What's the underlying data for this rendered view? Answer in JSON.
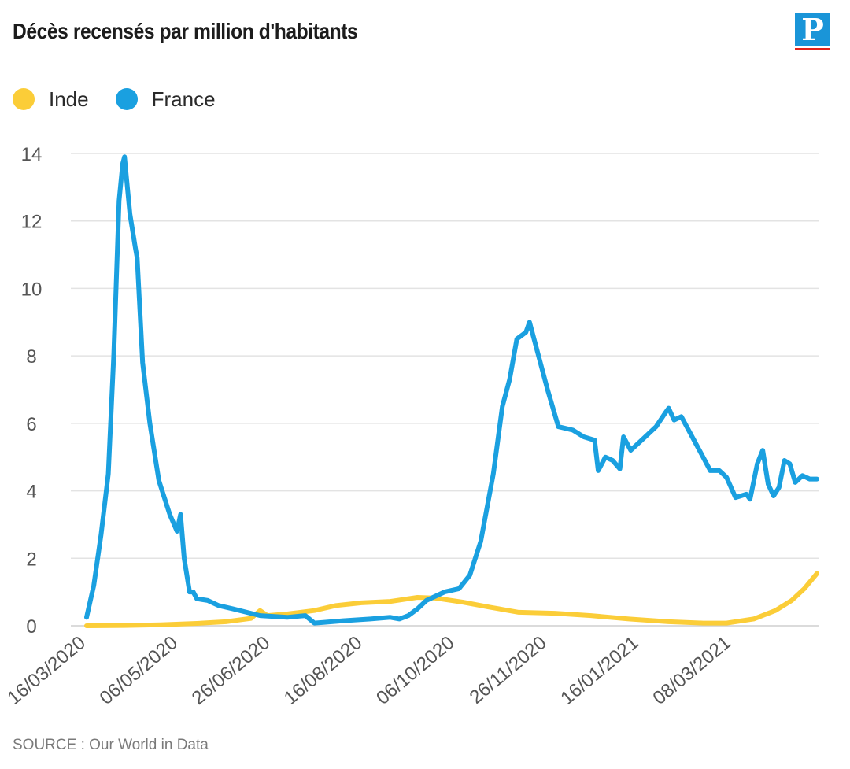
{
  "title": "Décès recensés par million d'habitants",
  "logo": {
    "letter": "P",
    "color": "#1a95d8",
    "accent": "#e2231a"
  },
  "source": "SOURCE : Our World in Data",
  "chart_data": {
    "type": "line",
    "title": "Décès recensés par million d'habitants",
    "xlabel": "",
    "ylabel": "",
    "ylim": [
      0,
      14
    ],
    "yticks": [
      0,
      2,
      4,
      6,
      8,
      10,
      12,
      14
    ],
    "xlim": [
      "2020-03-16",
      "2021-04-24"
    ],
    "xticks": [
      "16/03/2020",
      "06/05/2020",
      "26/06/2020",
      "16/08/2020",
      "06/10/2020",
      "26/11/2020",
      "16/01/2021",
      "08/03/2021"
    ],
    "grid": true,
    "legend_position": "top-left",
    "series": [
      {
        "name": "Inde",
        "color": "#fbcd38",
        "points": [
          [
            "2020-03-16",
            0.0
          ],
          [
            "2020-04-06",
            0.01
          ],
          [
            "2020-04-26",
            0.03
          ],
          [
            "2020-05-16",
            0.07
          ],
          [
            "2020-06-01",
            0.12
          ],
          [
            "2020-06-15",
            0.22
          ],
          [
            "2020-06-20",
            0.45
          ],
          [
            "2020-06-24",
            0.3
          ],
          [
            "2020-07-05",
            0.35
          ],
          [
            "2020-07-20",
            0.45
          ],
          [
            "2020-08-01",
            0.6
          ],
          [
            "2020-08-15",
            0.68
          ],
          [
            "2020-08-31",
            0.72
          ],
          [
            "2020-09-15",
            0.84
          ],
          [
            "2020-09-25",
            0.82
          ],
          [
            "2020-10-10",
            0.7
          ],
          [
            "2020-10-25",
            0.55
          ],
          [
            "2020-11-10",
            0.4
          ],
          [
            "2020-11-30",
            0.37
          ],
          [
            "2020-12-20",
            0.3
          ],
          [
            "2021-01-10",
            0.2
          ],
          [
            "2021-02-01",
            0.12
          ],
          [
            "2021-02-20",
            0.08
          ],
          [
            "2021-03-05",
            0.08
          ],
          [
            "2021-03-20",
            0.2
          ],
          [
            "2021-04-01",
            0.45
          ],
          [
            "2021-04-10",
            0.75
          ],
          [
            "2021-04-17",
            1.1
          ],
          [
            "2021-04-24",
            1.55
          ]
        ]
      },
      {
        "name": "France",
        "color": "#1aa0e0",
        "points": [
          [
            "2020-03-16",
            0.25
          ],
          [
            "2020-03-20",
            1.2
          ],
          [
            "2020-03-24",
            2.7
          ],
          [
            "2020-03-28",
            4.5
          ],
          [
            "2020-03-31",
            8.0
          ],
          [
            "2020-04-03",
            12.6
          ],
          [
            "2020-04-05",
            13.7
          ],
          [
            "2020-04-06",
            13.9
          ],
          [
            "2020-04-09",
            12.2
          ],
          [
            "2020-04-12",
            11.2
          ],
          [
            "2020-04-13",
            10.9
          ],
          [
            "2020-04-16",
            7.8
          ],
          [
            "2020-04-20",
            6.0
          ],
          [
            "2020-04-25",
            4.3
          ],
          [
            "2020-05-01",
            3.3
          ],
          [
            "2020-05-05",
            2.8
          ],
          [
            "2020-05-07",
            3.3
          ],
          [
            "2020-05-09",
            2.0
          ],
          [
            "2020-05-12",
            1.0
          ],
          [
            "2020-05-14",
            1.0
          ],
          [
            "2020-05-16",
            0.8
          ],
          [
            "2020-05-22",
            0.75
          ],
          [
            "2020-05-28",
            0.6
          ],
          [
            "2020-06-05",
            0.5
          ],
          [
            "2020-06-20",
            0.3
          ],
          [
            "2020-07-05",
            0.25
          ],
          [
            "2020-07-15",
            0.3
          ],
          [
            "2020-07-20",
            0.08
          ],
          [
            "2020-07-25",
            0.1
          ],
          [
            "2020-08-05",
            0.15
          ],
          [
            "2020-08-20",
            0.2
          ],
          [
            "2020-08-31",
            0.25
          ],
          [
            "2020-09-05",
            0.2
          ],
          [
            "2020-09-10",
            0.3
          ],
          [
            "2020-09-15",
            0.5
          ],
          [
            "2020-09-20",
            0.75
          ],
          [
            "2020-09-30",
            1.0
          ],
          [
            "2020-10-08",
            1.1
          ],
          [
            "2020-10-14",
            1.5
          ],
          [
            "2020-10-20",
            2.5
          ],
          [
            "2020-10-27",
            4.5
          ],
          [
            "2020-11-01",
            6.5
          ],
          [
            "2020-11-05",
            7.3
          ],
          [
            "2020-11-09",
            8.5
          ],
          [
            "2020-11-14",
            8.7
          ],
          [
            "2020-11-16",
            9.0
          ],
          [
            "2020-11-20",
            8.2
          ],
          [
            "2020-11-26",
            7.0
          ],
          [
            "2020-12-02",
            5.9
          ],
          [
            "2020-12-10",
            5.8
          ],
          [
            "2020-12-16",
            5.6
          ],
          [
            "2020-12-22",
            5.5
          ],
          [
            "2020-12-24",
            4.6
          ],
          [
            "2020-12-28",
            5.0
          ],
          [
            "2021-01-01",
            4.9
          ],
          [
            "2021-01-05",
            4.65
          ],
          [
            "2021-01-07",
            5.6
          ],
          [
            "2021-01-11",
            5.2
          ],
          [
            "2021-01-17",
            5.5
          ],
          [
            "2021-01-25",
            5.9
          ],
          [
            "2021-01-30",
            6.3
          ],
          [
            "2021-02-01",
            6.45
          ],
          [
            "2021-02-04",
            6.1
          ],
          [
            "2021-02-08",
            6.2
          ],
          [
            "2021-02-12",
            5.8
          ],
          [
            "2021-02-18",
            5.2
          ],
          [
            "2021-02-24",
            4.6
          ],
          [
            "2021-03-01",
            4.6
          ],
          [
            "2021-03-05",
            4.4
          ],
          [
            "2021-03-10",
            3.8
          ],
          [
            "2021-03-16",
            3.9
          ],
          [
            "2021-03-18",
            3.75
          ],
          [
            "2021-03-22",
            4.8
          ],
          [
            "2021-03-25",
            5.2
          ],
          [
            "2021-03-28",
            4.2
          ],
          [
            "2021-03-31",
            3.85
          ],
          [
            "2021-04-03",
            4.1
          ],
          [
            "2021-04-06",
            4.9
          ],
          [
            "2021-04-09",
            4.8
          ],
          [
            "2021-04-12",
            4.25
          ],
          [
            "2021-04-16",
            4.45
          ],
          [
            "2021-04-20",
            4.35
          ],
          [
            "2021-04-24",
            4.35
          ]
        ]
      }
    ]
  }
}
